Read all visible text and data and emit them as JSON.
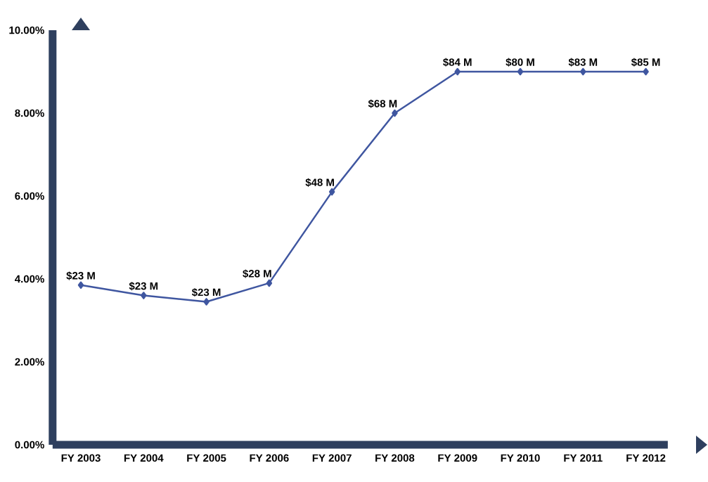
{
  "chart_data": {
    "type": "line",
    "categories": [
      "FY 2003",
      "FY 2004",
      "FY 2005",
      "FY 2006",
      "FY 2007",
      "FY 2008",
      "FY 2009",
      "FY 2010",
      "FY 2011",
      "FY 2012"
    ],
    "values": [
      3.85,
      3.6,
      3.45,
      3.9,
      6.1,
      8.0,
      9.0,
      9.0,
      9.0,
      9.0
    ],
    "annotations": [
      {
        "text": "$23 M",
        "x": "FY 2003",
        "y": 3.85
      },
      {
        "text": "$23 M",
        "x": "FY 2004",
        "y": 3.6
      },
      {
        "text": "$23 M",
        "x": "FY 2005",
        "y": 3.45
      },
      {
        "text": "$28 M",
        "x": "FY 2006",
        "y": 3.9
      },
      {
        "text": "$48 M",
        "x": "FY 2007",
        "y": 6.1
      },
      {
        "text": "$68 M",
        "x": "FY 2008",
        "y": 8.0
      },
      {
        "text": "$84 M",
        "x": "FY 2009",
        "y": 9.0
      },
      {
        "text": "$80 M",
        "x": "FY 2010",
        "y": 9.0
      },
      {
        "text": "$83 M",
        "x": "FY 2011",
        "y": 9.0
      },
      {
        "text": "$85 M",
        "x": "FY 2012",
        "y": 9.0
      }
    ],
    "color": "#3f56a0",
    "marker": "diamond",
    "line_style": "solid",
    "grid": false,
    "ylim": [
      0,
      10
    ],
    "yticks": [
      {
        "value": 0,
        "label": "0.00%"
      },
      {
        "value": 2,
        "label": "2.00%"
      },
      {
        "value": 4,
        "label": "4.00%"
      },
      {
        "value": 6,
        "label": "6.00%"
      },
      {
        "value": 8,
        "label": "8.00%"
      },
      {
        "value": 10,
        "label": "10.00%"
      }
    ]
  }
}
